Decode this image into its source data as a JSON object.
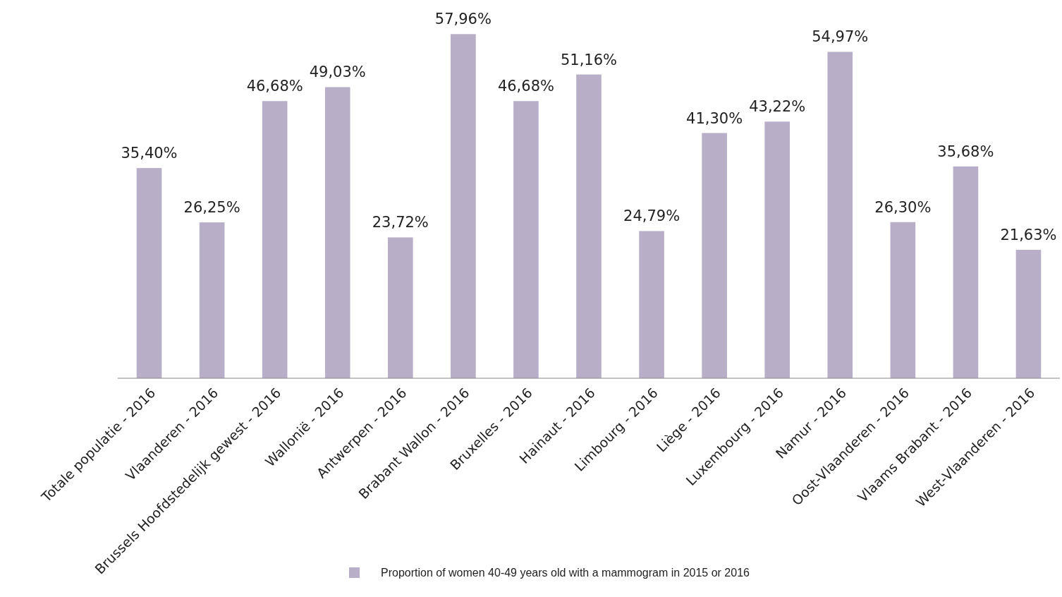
{
  "chart_data": {
    "type": "bar",
    "categories": [
      "Totale populatie - 2016",
      "Vlaanderen - 2016",
      "Brussels Hoofdstedelijk gewest - 2016",
      "Wallonië - 2016",
      "Antwerpen - 2016",
      "Brabant Wallon - 2016",
      "Bruxelles - 2016",
      "Hainaut - 2016",
      "Limbourg - 2016",
      "Liège - 2016",
      "Luxembourg - 2016",
      "Namur - 2016",
      "Oost-Vlaanderen - 2016",
      "Vlaams Brabant - 2016",
      "West-Vlaanderen - 2016"
    ],
    "series": [
      {
        "name": "Proportion of women 40-49 years old with a mammogram in 2015 or 2016",
        "color": "#b8aec8",
        "values": [
          35.4,
          26.25,
          46.68,
          49.03,
          23.72,
          57.96,
          46.68,
          51.16,
          24.79,
          41.3,
          43.22,
          54.97,
          26.3,
          35.68,
          21.63
        ],
        "value_labels": [
          "35,40%",
          "26,25%",
          "46,68%",
          "49,03%",
          "23,72%",
          "57,96%",
          "46,68%",
          "51,16%",
          "24,79%",
          "41,30%",
          "43,22%",
          "54,97%",
          "26,30%",
          "35,68%",
          "21,63%"
        ]
      }
    ],
    "ylim": [
      0,
      58
    ],
    "tick_labels": "x",
    "legend": "bottom"
  }
}
